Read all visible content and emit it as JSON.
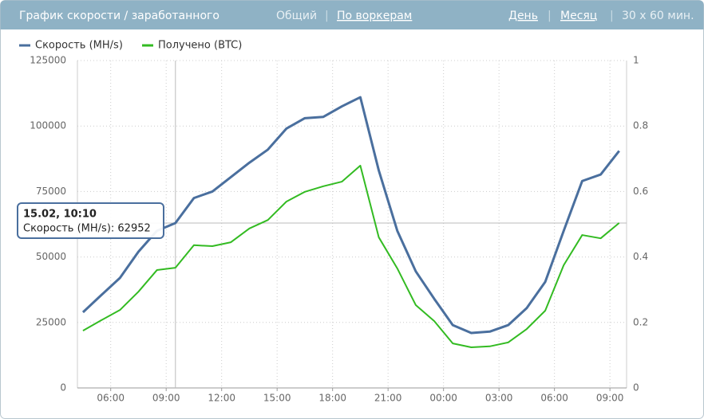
{
  "header": {
    "title": "График скорости / заработанного",
    "links": [
      "Общий",
      "По воркерам",
      "День",
      "Месяц",
      "30 x 60 мин."
    ]
  },
  "chart_data": {
    "type": "line",
    "x": [
      4.5,
      5.5,
      6.5,
      7.5,
      8.5,
      9.5,
      10.5,
      11.5,
      12.5,
      13.5,
      14.5,
      15.5,
      16.5,
      17.5,
      18.5,
      19.5,
      20.5,
      21.5,
      22.5,
      23.5,
      24.5,
      25.5,
      26.5,
      27.5,
      28.5,
      29.5,
      30.5,
      31.5,
      32.5,
      33.5
    ],
    "xlim": [
      4.2,
      33.9
    ],
    "xticks": [
      {
        "value": 6,
        "label": "06:00"
      },
      {
        "value": 9,
        "label": "09:00"
      },
      {
        "value": 12,
        "label": "12:00"
      },
      {
        "value": 15,
        "label": "15:00"
      },
      {
        "value": 18,
        "label": "18:00"
      },
      {
        "value": 21,
        "label": "21:00"
      },
      {
        "value": 24,
        "label": "00:00"
      },
      {
        "value": 27,
        "label": "03:00"
      },
      {
        "value": 30,
        "label": "06:00"
      },
      {
        "value": 33,
        "label": "09:00"
      }
    ],
    "ylim": [
      0,
      125000
    ],
    "yticks": [
      0,
      25000,
      50000,
      75000,
      100000,
      125000
    ],
    "y2lim": [
      0,
      1
    ],
    "y2ticks": [
      0,
      0.2,
      0.4,
      0.6,
      0.8,
      1
    ],
    "grid": true,
    "legend": "top-left",
    "series": [
      {
        "name": "Скорость (MH/s)",
        "color": "#4a6f9e",
        "values": [
          28900,
          35500,
          42000,
          52000,
          60000,
          62952,
          72500,
          75000,
          80500,
          86000,
          91000,
          99000,
          103000,
          103500,
          107500,
          111000,
          83000,
          60000,
          44500,
          34000,
          24000,
          21000,
          21500,
          24000,
          30500,
          40500,
          60000,
          79000,
          81500,
          90500
        ]
      },
      {
        "name": "Получено (BTC)",
        "color": "#33bb22",
        "axis": "y2",
        "values": [
          0.175,
          0.207,
          0.238,
          0.294,
          0.36,
          0.367,
          0.436,
          0.433,
          0.445,
          0.487,
          0.513,
          0.569,
          0.599,
          0.616,
          0.63,
          0.679,
          0.46,
          0.365,
          0.253,
          0.204,
          0.136,
          0.124,
          0.127,
          0.139,
          0.18,
          0.236,
          0.375,
          0.467,
          0.457,
          0.504
        ]
      }
    ],
    "tooltip": {
      "title": "15.02, 10:10",
      "text": "Скорость (MH/s): 62952"
    }
  }
}
